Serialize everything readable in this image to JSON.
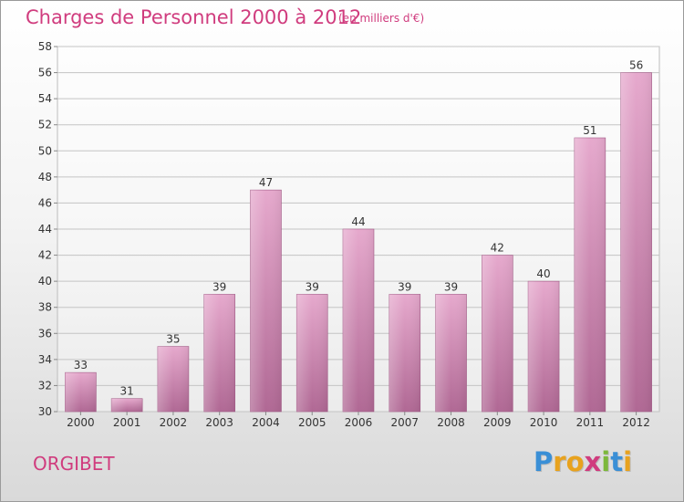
{
  "title": "Charges de Personnel 2000 à 2012",
  "subtitle": "(en milliers d'€)",
  "town": "ORGIBET",
  "logo": {
    "text": "Proxiti",
    "letters": [
      {
        "ch": "P",
        "color": "#3a8fd6"
      },
      {
        "ch": "r",
        "color": "#e8a21e"
      },
      {
        "ch": "o",
        "color": "#e8a21e"
      },
      {
        "ch": "x",
        "color": "#d03c7e"
      },
      {
        "ch": "i",
        "color": "#7cb83a"
      },
      {
        "ch": "t",
        "color": "#3a8fd6"
      },
      {
        "ch": "i",
        "color": "#e8a21e"
      }
    ]
  },
  "colors": {
    "bar_top": "#e6a9cd",
    "bar_bottom": "#b06894",
    "grid": "#c4c4c4",
    "axis_text": "#333333"
  },
  "chart_data": {
    "type": "bar",
    "categories": [
      "2000",
      "2001",
      "2002",
      "2003",
      "2004",
      "2005",
      "2006",
      "2007",
      "2008",
      "2009",
      "2010",
      "2011",
      "2012"
    ],
    "values": [
      33,
      31,
      35,
      39,
      47,
      39,
      44,
      39,
      39,
      42,
      40,
      51,
      56
    ],
    "data_labels": [
      "33",
      "31",
      "35",
      "39",
      "47",
      "39",
      "44",
      "39",
      "39",
      "42",
      "40",
      "51",
      "56"
    ],
    "ylim": [
      30,
      58
    ],
    "yticks": [
      30,
      32,
      34,
      36,
      38,
      40,
      42,
      44,
      46,
      48,
      50,
      52,
      54,
      56,
      58
    ],
    "grid": true
  }
}
